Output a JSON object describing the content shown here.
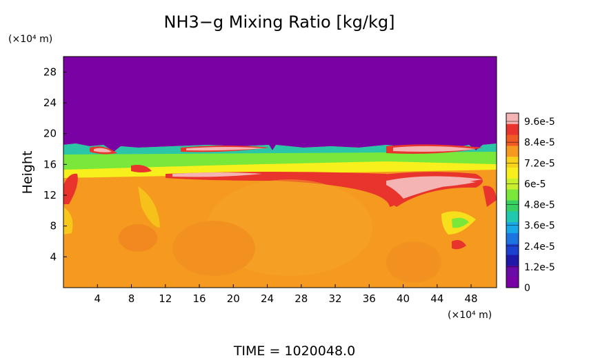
{
  "chart_data": {
    "type": "heatmap",
    "title": "NH3−g Mixing Ratio [kg/kg]",
    "ylabel": "Height",
    "y_unit_label": "(×10⁴ m)",
    "x_unit_label": "(×10⁴ m)",
    "x_ticks": [
      "4",
      "8",
      "12",
      "16",
      "20",
      "24",
      "28",
      "32",
      "36",
      "40",
      "44",
      "48"
    ],
    "y_ticks": [
      "4",
      "8",
      "12",
      "16",
      "20",
      "24",
      "28"
    ],
    "xlim": [
      0,
      51
    ],
    "ylim": [
      0,
      30
    ],
    "colorbar": {
      "labels": [
        "9.6e-5",
        "8.4e-5",
        "7.2e-5",
        "6e-5",
        "4.8e-5",
        "3.6e-5",
        "2.4e-5",
        "1.2e-5",
        "0"
      ],
      "colors": [
        "#f4b4b4",
        "#e8342c",
        "#f05a24",
        "#f59a1e",
        "#f7d21a",
        "#f8f01c",
        "#c8f02c",
        "#7ae83a",
        "#38d060",
        "#20c8b0",
        "#18a8e8",
        "#1c74e0",
        "#1c40d0",
        "#2018a8",
        "#6a0aa8",
        "#7a02a4"
      ]
    },
    "field": {
      "top_value_color": "#7a02a4",
      "bottom_value_color": "#f59a1e",
      "interface_height": 18.3,
      "note": ""
    },
    "time_label": "TIME  =  1020048.0"
  }
}
